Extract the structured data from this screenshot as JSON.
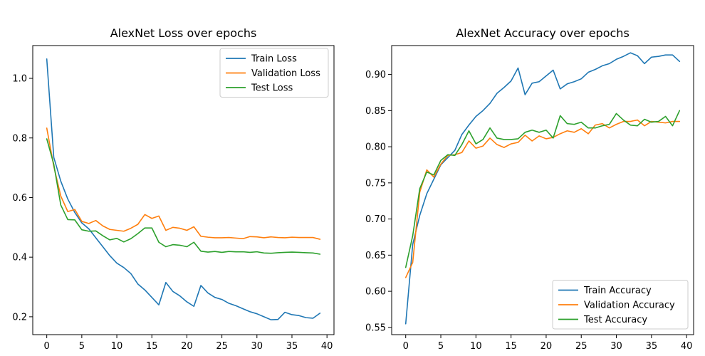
{
  "chart_data": [
    {
      "type": "line",
      "title": "AlexNet Loss over epochs",
      "xlabel": "",
      "ylabel": "",
      "xlim": [
        -2,
        41
      ],
      "ylim": [
        0.14,
        1.11
      ],
      "xticks": [
        0,
        5,
        10,
        15,
        20,
        25,
        30,
        35,
        40
      ],
      "yticks": [
        0.2,
        0.4,
        0.6,
        0.8,
        1.0
      ],
      "ytick_labels": [
        "0.2",
        "0.4",
        "0.6",
        "0.8",
        "1.0"
      ],
      "legend": "top-right",
      "grid": false,
      "x": [
        0,
        1,
        2,
        3,
        4,
        5,
        6,
        7,
        8,
        9,
        10,
        11,
        12,
        13,
        14,
        15,
        16,
        17,
        18,
        19,
        20,
        21,
        22,
        23,
        24,
        25,
        26,
        27,
        28,
        29,
        30,
        31,
        32,
        33,
        34,
        35,
        36,
        37,
        38,
        39
      ],
      "series": [
        {
          "name": "Train Loss",
          "color": "#1f77b4",
          "values": [
            1.065,
            0.735,
            0.655,
            0.595,
            0.55,
            0.515,
            0.495,
            0.465,
            0.435,
            0.405,
            0.38,
            0.365,
            0.345,
            0.31,
            0.29,
            0.265,
            0.24,
            0.315,
            0.285,
            0.27,
            0.25,
            0.235,
            0.305,
            0.28,
            0.265,
            0.258,
            0.245,
            0.237,
            0.227,
            0.217,
            0.21,
            0.2,
            0.19,
            0.191,
            0.215,
            0.207,
            0.204,
            0.197,
            0.195,
            0.212
          ]
        },
        {
          "name": "Validation Loss",
          "color": "#ff7f0e",
          "values": [
            0.833,
            0.705,
            0.605,
            0.553,
            0.56,
            0.52,
            0.513,
            0.523,
            0.505,
            0.493,
            0.49,
            0.487,
            0.497,
            0.51,
            0.543,
            0.53,
            0.538,
            0.49,
            0.5,
            0.497,
            0.49,
            0.502,
            0.47,
            0.467,
            0.465,
            0.465,
            0.466,
            0.464,
            0.462,
            0.469,
            0.468,
            0.465,
            0.468,
            0.466,
            0.465,
            0.467,
            0.466,
            0.466,
            0.466,
            0.46
          ]
        },
        {
          "name": "Test Loss",
          "color": "#2ca02c",
          "values": [
            0.797,
            0.712,
            0.575,
            0.526,
            0.525,
            0.492,
            0.487,
            0.488,
            0.472,
            0.458,
            0.463,
            0.451,
            0.462,
            0.479,
            0.498,
            0.498,
            0.45,
            0.435,
            0.442,
            0.44,
            0.435,
            0.45,
            0.42,
            0.417,
            0.419,
            0.416,
            0.419,
            0.418,
            0.418,
            0.416,
            0.418,
            0.414,
            0.413,
            0.415,
            0.416,
            0.417,
            0.416,
            0.415,
            0.414,
            0.41
          ]
        }
      ]
    },
    {
      "type": "line",
      "title": "AlexNet Accuracy over epochs",
      "xlabel": "",
      "ylabel": "",
      "xlim": [
        -2,
        41
      ],
      "ylim": [
        0.54,
        0.94
      ],
      "xticks": [
        0,
        5,
        10,
        15,
        20,
        25,
        30,
        35,
        40
      ],
      "yticks": [
        0.55,
        0.6,
        0.65,
        0.7,
        0.75,
        0.8,
        0.85,
        0.9
      ],
      "ytick_labels": [
        "0.55",
        "0.60",
        "0.65",
        "0.70",
        "0.75",
        "0.80",
        "0.85",
        "0.90"
      ],
      "legend": "bottom-right",
      "grid": false,
      "x": [
        0,
        1,
        2,
        3,
        4,
        5,
        6,
        7,
        8,
        9,
        10,
        11,
        12,
        13,
        14,
        15,
        16,
        17,
        18,
        19,
        20,
        21,
        22,
        23,
        24,
        25,
        26,
        27,
        28,
        29,
        30,
        31,
        32,
        33,
        34,
        35,
        36,
        37,
        38,
        39
      ],
      "series": [
        {
          "name": "Train Accuracy",
          "color": "#1f77b4",
          "values": [
            0.555,
            0.665,
            0.705,
            0.735,
            0.755,
            0.775,
            0.785,
            0.795,
            0.817,
            0.83,
            0.842,
            0.85,
            0.86,
            0.874,
            0.882,
            0.891,
            0.909,
            0.872,
            0.888,
            0.89,
            0.898,
            0.906,
            0.88,
            0.887,
            0.89,
            0.894,
            0.903,
            0.907,
            0.912,
            0.915,
            0.921,
            0.925,
            0.93,
            0.926,
            0.915,
            0.924,
            0.925,
            0.927,
            0.927,
            0.918
          ]
        },
        {
          "name": "Validation Accuracy",
          "color": "#ff7f0e",
          "values": [
            0.619,
            0.64,
            0.737,
            0.768,
            0.758,
            0.776,
            0.788,
            0.789,
            0.792,
            0.808,
            0.798,
            0.801,
            0.812,
            0.803,
            0.799,
            0.804,
            0.806,
            0.816,
            0.808,
            0.815,
            0.811,
            0.813,
            0.818,
            0.822,
            0.82,
            0.825,
            0.818,
            0.83,
            0.832,
            0.826,
            0.831,
            0.835,
            0.835,
            0.837,
            0.829,
            0.835,
            0.834,
            0.833,
            0.835,
            0.835
          ]
        },
        {
          "name": "Test Accuracy",
          "color": "#2ca02c",
          "values": [
            0.633,
            0.677,
            0.742,
            0.765,
            0.761,
            0.781,
            0.789,
            0.788,
            0.803,
            0.822,
            0.804,
            0.81,
            0.826,
            0.812,
            0.81,
            0.81,
            0.811,
            0.82,
            0.823,
            0.82,
            0.823,
            0.812,
            0.843,
            0.832,
            0.831,
            0.834,
            0.826,
            0.826,
            0.829,
            0.831,
            0.846,
            0.837,
            0.83,
            0.829,
            0.838,
            0.834,
            0.835,
            0.842,
            0.829,
            0.85
          ]
        }
      ]
    }
  ]
}
